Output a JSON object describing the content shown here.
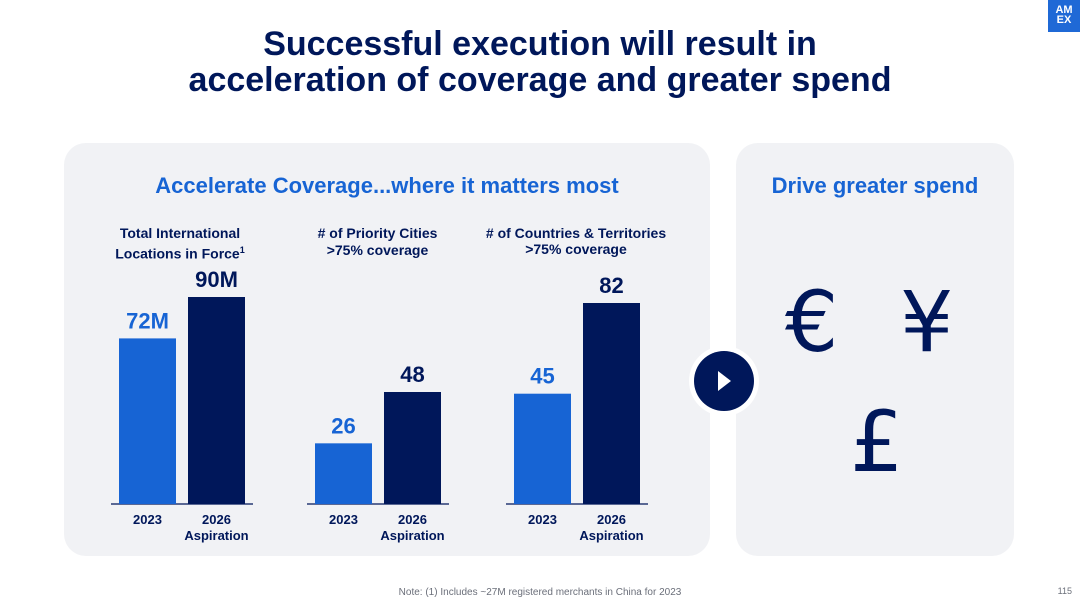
{
  "logo": {
    "line1": "AM",
    "line2": "EX"
  },
  "title": {
    "line1": "Successful execution will result in",
    "line2": "acceleration of coverage and greater spend"
  },
  "left_panel": {
    "title": "Accelerate Coverage...where it matters most"
  },
  "right_panel": {
    "title": "Drive greater spend",
    "symbols": {
      "euro": "€",
      "yen": "¥",
      "pound": "£"
    }
  },
  "colors": {
    "light_blue": "#1764d4",
    "navy": "#00175a",
    "panel_bg": "#f1f2f5"
  },
  "chart_data": [
    {
      "type": "bar",
      "title_lines": [
        "Total International",
        "Locations in Force"
      ],
      "title_footnote": "1",
      "categories": [
        "2023",
        "2026"
      ],
      "category_sublabels": [
        "",
        "Aspiration"
      ],
      "values": [
        72,
        90
      ],
      "value_labels": [
        "72M",
        "90M"
      ],
      "unit": "M"
    },
    {
      "type": "bar",
      "title_lines": [
        "# of Priority Cities",
        ">75% coverage"
      ],
      "categories": [
        "2023",
        "2026"
      ],
      "category_sublabels": [
        "",
        "Aspiration"
      ],
      "values": [
        26,
        48
      ],
      "value_labels": [
        "26",
        "48"
      ]
    },
    {
      "type": "bar",
      "title_lines": [
        "# of Countries & Territories",
        ">75% coverage"
      ],
      "categories": [
        "2023",
        "2026"
      ],
      "category_sublabels": [
        "",
        "Aspiration"
      ],
      "values": [
        45,
        82
      ],
      "value_labels": [
        "45",
        "82"
      ]
    }
  ],
  "footnote": "Note: (1) Includes ~27M registered merchants in China for 2023",
  "page_number": "115"
}
